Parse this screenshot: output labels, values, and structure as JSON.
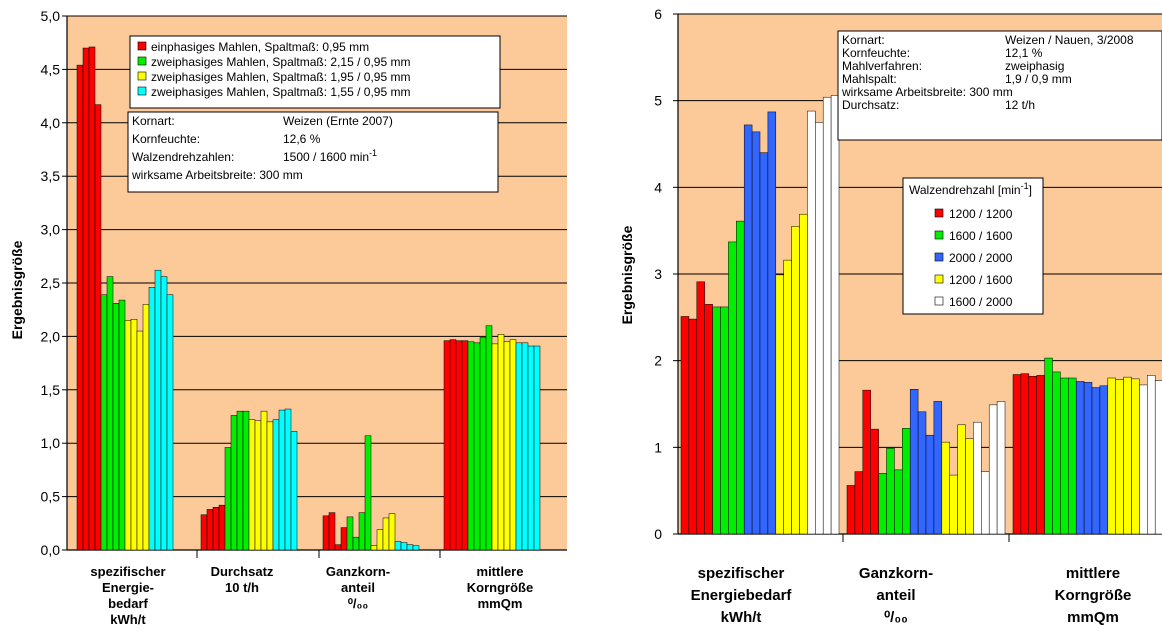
{
  "chart_data": [
    {
      "type": "bar",
      "ylabel": "Ergebnisgröße",
      "ylim": [
        0,
        5
      ],
      "yticks": [
        "0,0",
        "0,5",
        "1,0",
        "1,5",
        "2,0",
        "2,5",
        "3,0",
        "3,5",
        "4,0",
        "4,5",
        "5,0"
      ],
      "categories": [
        [
          "spezifischer",
          "Energie-",
          "bedarf",
          "kWh/t"
        ],
        [
          "Durchsatz",
          "10 t/h"
        ],
        [
          "Ganzkorn-",
          "anteil",
          "⁰/₀₀"
        ],
        [
          "mittlere",
          "Korngröße",
          "mmQm"
        ]
      ],
      "legend": {
        "placement": "top-right"
      },
      "series": [
        {
          "name": "einphasiges Mahlen,   Spaltmaß: 0,95 mm",
          "color": "#ff0000",
          "values": [
            [
              4.54,
              4.7,
              4.71,
              4.17
            ],
            [
              0.33,
              0.38,
              0.4,
              0.42
            ],
            [
              0.32,
              0.35,
              0.05,
              0.21
            ],
            [
              1.96,
              1.97,
              1.96,
              1.96
            ]
          ]
        },
        {
          "name": "zweiphasiges Mahlen, Spaltmaß: 2,15 / 0,95 mm",
          "color": "#00ee00",
          "values": [
            [
              2.39,
              2.56,
              2.31,
              2.34
            ],
            [
              0.96,
              1.26,
              1.3,
              1.3
            ],
            [
              0.31,
              0.12,
              0.35,
              1.07
            ],
            [
              1.95,
              1.94,
              1.99,
              2.1
            ]
          ]
        },
        {
          "name": "zweiphasiges Mahlen, Spaltmaß: 1,95 / 0,95 mm",
          "color": "#ffff00",
          "values": [
            [
              2.15,
              2.16,
              2.05,
              2.3
            ],
            [
              1.22,
              1.21,
              1.3,
              1.2
            ],
            [
              0.04,
              0.19,
              0.3,
              0.34
            ],
            [
              1.93,
              2.02,
              1.95,
              1.97
            ]
          ]
        },
        {
          "name": "zweiphasiges Mahlen, Spaltmaß: 1,55 / 0,95 mm",
          "color": "#00ffff",
          "values": [
            [
              2.46,
              2.62,
              2.56,
              2.39
            ],
            [
              1.22,
              1.31,
              1.32,
              1.11
            ],
            [
              0.08,
              0.07,
              0.05,
              0.04
            ],
            [
              1.94,
              1.94,
              1.91,
              1.91
            ]
          ]
        }
      ],
      "info": [
        [
          "Kornart:",
          "Weizen (Ernte 2007)"
        ],
        [
          "Kornfeuchte:",
          "12,6 %"
        ],
        [
          "Walzendrehzahlen:",
          "1500 / 1600 min"
        ],
        [
          "wirksame Arbeitsbreite: 300 mm",
          ""
        ]
      ],
      "info_superscript": "-1"
    },
    {
      "type": "bar",
      "ylabel": "Ergebnisgröße",
      "ylim": [
        0,
        6
      ],
      "yticks": [
        "0",
        "1",
        "2",
        "3",
        "4",
        "5",
        "6"
      ],
      "categories": [
        [
          "spezifischer",
          "Energiebedarf",
          "kWh/t"
        ],
        [
          "Ganzkorn-",
          "anteil",
          "⁰/₀₀"
        ],
        [
          "mittlere",
          "Korngröße",
          "mmQm"
        ]
      ],
      "legend": {
        "title": "Walzendrehzahl [min",
        "title_sup": "-1",
        "title_end": "]",
        "placement": "center-right"
      },
      "series": [
        {
          "name": "1200 / 1200",
          "color": "#ff0000",
          "values": [
            [
              2.51,
              2.48,
              2.91,
              2.65
            ],
            [
              0.56,
              0.72,
              1.66,
              1.21
            ],
            [
              1.84,
              1.85,
              1.82,
              1.83
            ]
          ]
        },
        {
          "name": "1600 / 1600",
          "color": "#00ee00",
          "values": [
            [
              2.62,
              2.62,
              3.37,
              3.61
            ],
            [
              0.7,
              0.99,
              0.74,
              1.22
            ],
            [
              2.03,
              1.87,
              1.8,
              1.8
            ]
          ]
        },
        {
          "name": "2000 / 2000",
          "color": "#3366ff",
          "values": [
            [
              4.72,
              4.64,
              4.4,
              4.87
            ],
            [
              1.67,
              1.41,
              1.14,
              1.53
            ],
            [
              1.76,
              1.75,
              1.69,
              1.71
            ]
          ]
        },
        {
          "name": "1200 / 1600",
          "color": "#ffff00",
          "values": [
            [
              2.99,
              3.16,
              3.55,
              3.69
            ],
            [
              1.06,
              0.68,
              1.26,
              1.1
            ],
            [
              1.8,
              1.78,
              1.81,
              1.79
            ]
          ]
        },
        {
          "name": "1600 / 2000",
          "color": "#ffffff",
          "values": [
            [
              4.88,
              4.75,
              5.04,
              5.06
            ],
            [
              1.29,
              0.72,
              1.49,
              1.53
            ],
            [
              1.72,
              1.83,
              1.77,
              1.78
            ]
          ]
        }
      ],
      "info": [
        [
          "Kornart:",
          "Weizen / Nauen, 3/2008"
        ],
        [
          "Kornfeuchte:",
          "12,1 %"
        ],
        [
          "Mahlverfahren:",
          "zweiphasig"
        ],
        [
          "Mahlspalt:",
          "1,9 / 0,9 mm"
        ],
        [
          "wirksame Arbeitsbreite: 300 mm",
          ""
        ],
        [
          "Durchsatz:",
          "12 t/h"
        ]
      ]
    }
  ]
}
